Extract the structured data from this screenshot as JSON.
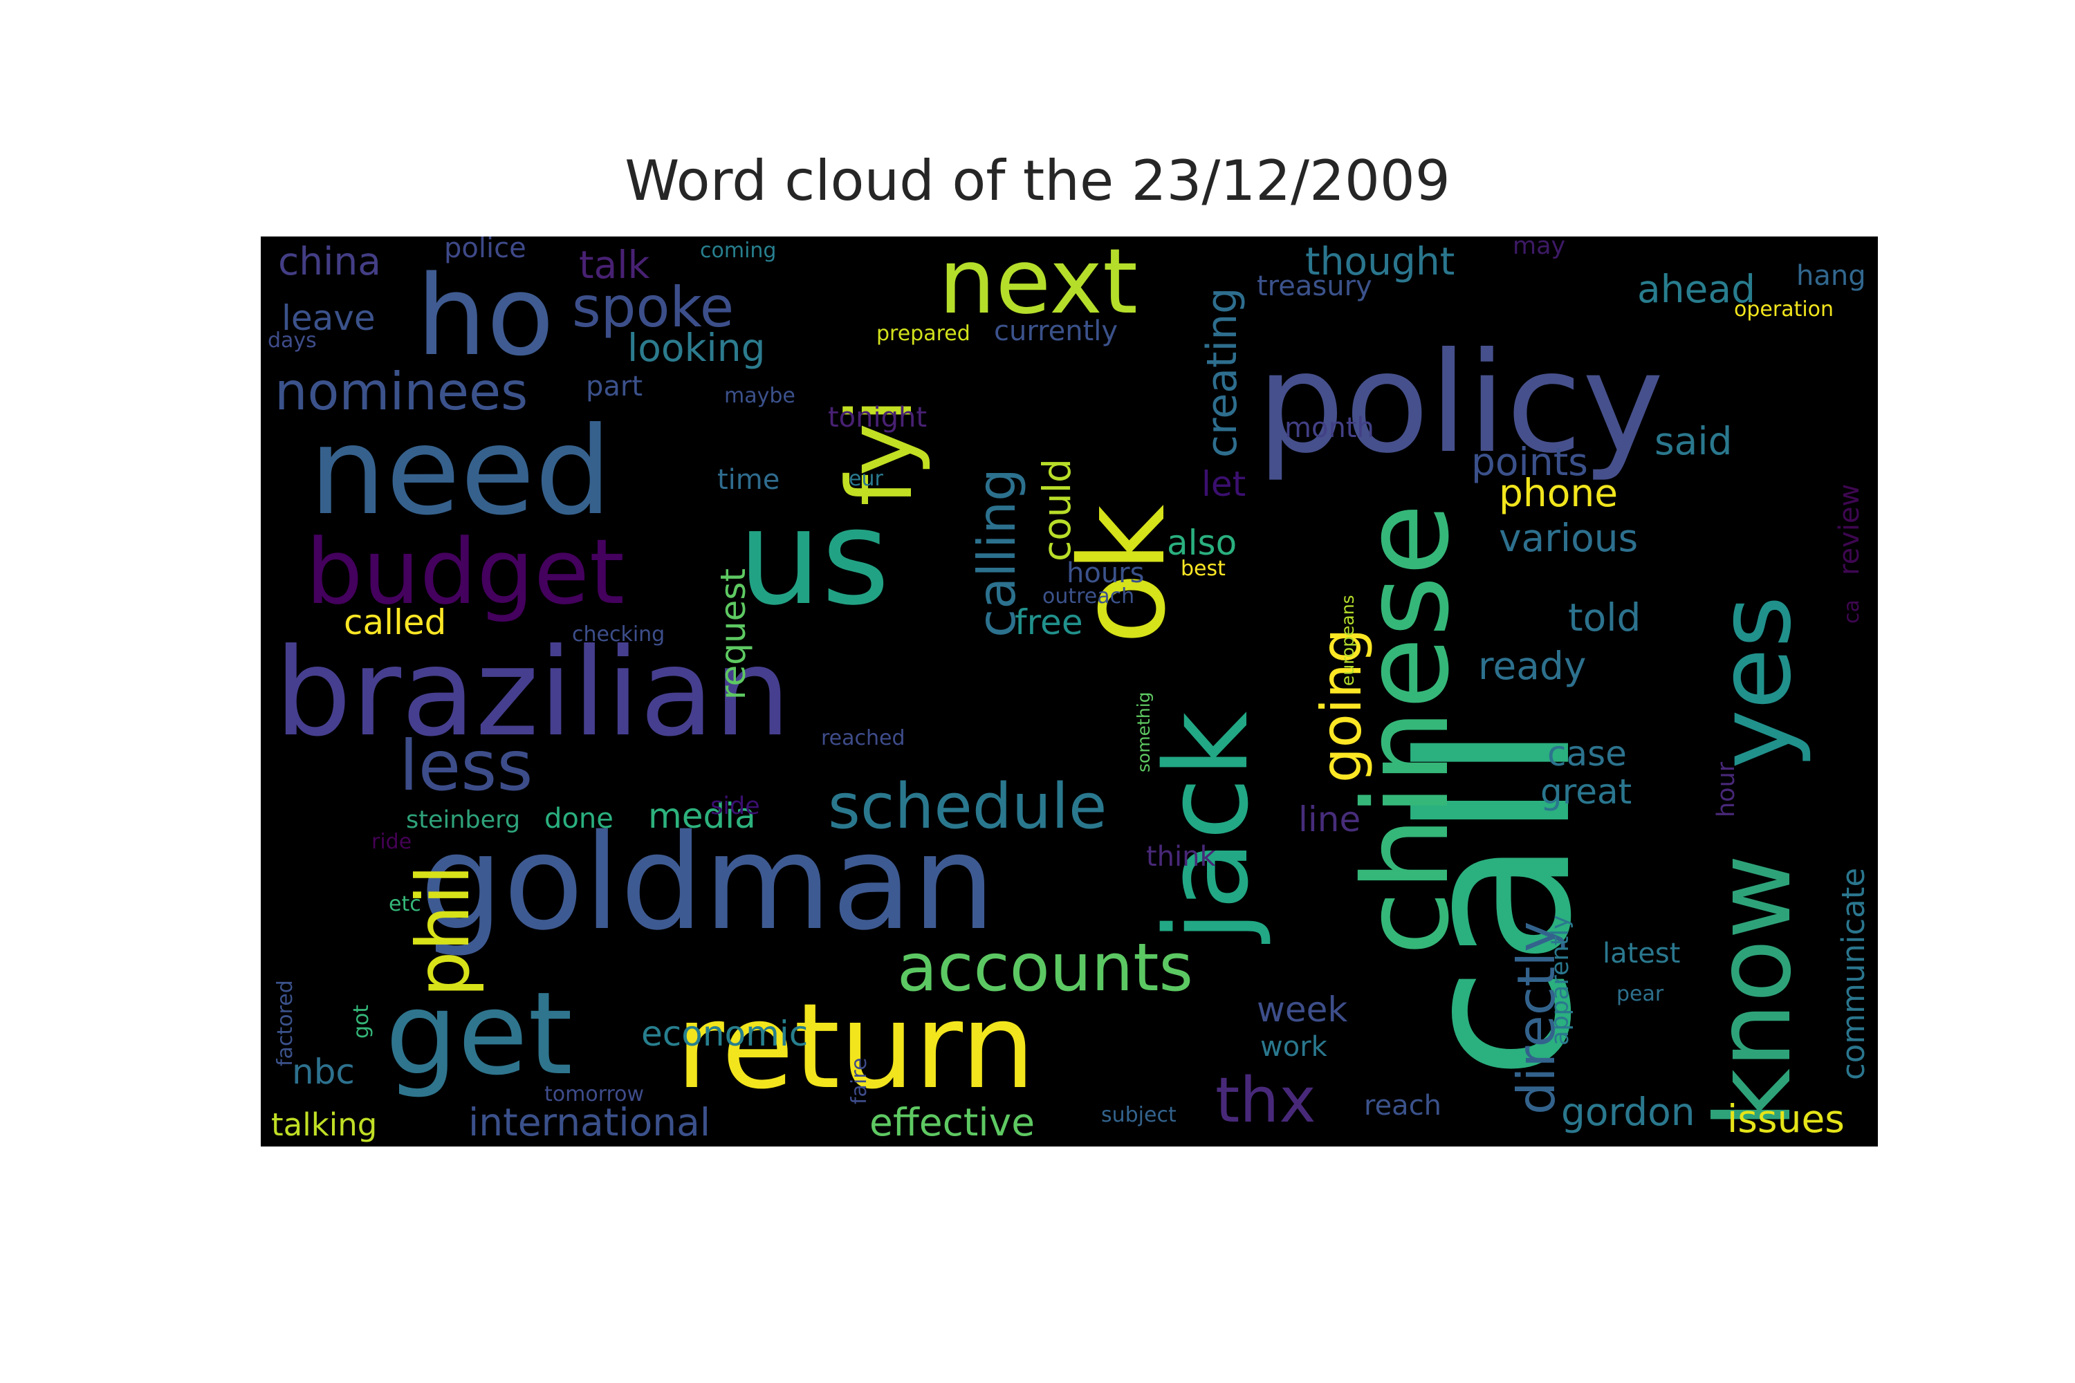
{
  "chart_data": {
    "type": "wordcloud",
    "title": "Word cloud of the 23/12/2009",
    "words": [
      {
        "text": "call",
        "color": "#2bb07f"
      },
      {
        "text": "policy",
        "color": "#46508c"
      },
      {
        "text": "goldman",
        "color": "#3e5a92"
      },
      {
        "text": "brazilian",
        "color": "#463f8f"
      },
      {
        "text": "chinese",
        "color": "#35b779"
      },
      {
        "text": "need",
        "color": "#36618d"
      },
      {
        "text": "return",
        "color": "#f2e51d"
      },
      {
        "text": "jack",
        "color": "#22a885"
      },
      {
        "text": "know",
        "color": "#2ea37a"
      },
      {
        "text": "us",
        "color": "#22a284"
      },
      {
        "text": "ok",
        "color": "#d6e21a"
      },
      {
        "text": "ho",
        "color": "#3f5b91"
      },
      {
        "text": "get",
        "color": "#2f758e"
      },
      {
        "text": "budget",
        "color": "#44015d"
      },
      {
        "text": "yes",
        "color": "#21918c"
      },
      {
        "text": "next",
        "color": "#b5de2b"
      },
      {
        "text": "fyi",
        "color": "#c2df23"
      },
      {
        "text": "phil",
        "color": "#d8e219"
      },
      {
        "text": "schedule",
        "color": "#2a788e"
      },
      {
        "text": "less",
        "color": "#3d4d8a"
      },
      {
        "text": "accounts",
        "color": "#5cc863"
      },
      {
        "text": "nominees",
        "color": "#3b528b"
      },
      {
        "text": "spoke",
        "color": "#3c4f8a"
      },
      {
        "text": "going",
        "color": "#fde725"
      },
      {
        "text": "calling",
        "color": "#2c718e"
      },
      {
        "text": "directly",
        "color": "#33638d"
      },
      {
        "text": "thx",
        "color": "#482979"
      },
      {
        "text": "creating",
        "color": "#2e6e8e"
      },
      {
        "text": "thought",
        "color": "#2a768e"
      },
      {
        "text": "could",
        "color": "#b8de29"
      },
      {
        "text": "looking",
        "color": "#2c7b8e"
      },
      {
        "text": "request",
        "color": "#5ec962"
      },
      {
        "text": "media",
        "color": "#2db27d"
      },
      {
        "text": "economic",
        "color": "#277f8e"
      },
      {
        "text": "international",
        "color": "#3b518b"
      },
      {
        "text": "effective",
        "color": "#5ec962"
      },
      {
        "text": "points",
        "color": "#3b518b"
      },
      {
        "text": "various",
        "color": "#2d708e"
      },
      {
        "text": "told",
        "color": "#2c738e"
      },
      {
        "text": "ready",
        "color": "#2d718e"
      },
      {
        "text": "phone",
        "color": "#f1e51d"
      },
      {
        "text": "said",
        "color": "#2a788e"
      },
      {
        "text": "ahead",
        "color": "#287d8e"
      },
      {
        "text": "china",
        "color": "#433e85"
      },
      {
        "text": "talk",
        "color": "#482173"
      },
      {
        "text": "leave",
        "color": "#3b528b"
      },
      {
        "text": "called",
        "color": "#fde725"
      },
      {
        "text": "also",
        "color": "#2ab07f"
      },
      {
        "text": "let",
        "color": "#3b0f70"
      },
      {
        "text": "free",
        "color": "#21918c"
      },
      {
        "text": "case",
        "color": "#2c738e"
      },
      {
        "text": "great",
        "color": "#2a768e"
      },
      {
        "text": "line",
        "color": "#472d7b"
      },
      {
        "text": "week",
        "color": "#3d4e8a"
      },
      {
        "text": "gordon",
        "color": "#2a788e"
      },
      {
        "text": "issues",
        "color": "#e5e419"
      },
      {
        "text": "communicate",
        "color": "#2a768e"
      },
      {
        "text": "nbc",
        "color": "#2d718e"
      },
      {
        "text": "talking",
        "color": "#c0df25"
      },
      {
        "text": "hours",
        "color": "#3b528b"
      },
      {
        "text": "month",
        "color": "#424086"
      },
      {
        "text": "treasury",
        "color": "#3b528b"
      },
      {
        "text": "police",
        "color": "#3e4989"
      },
      {
        "text": "currently",
        "color": "#3b528b"
      },
      {
        "text": "tonight",
        "color": "#482173"
      },
      {
        "text": "time",
        "color": "#2f6c8e"
      },
      {
        "text": "part",
        "color": "#3b518b"
      },
      {
        "text": "coming",
        "color": "#277f8e"
      },
      {
        "text": "prepared",
        "color": "#d2e21b"
      },
      {
        "text": "maybe",
        "color": "#3b518b"
      },
      {
        "text": "eur",
        "color": "#2a788e"
      },
      {
        "text": "days",
        "color": "#3e4c8a"
      },
      {
        "text": "may",
        "color": "#3d1a66"
      },
      {
        "text": "hang",
        "color": "#31678e"
      },
      {
        "text": "operation",
        "color": "#f2e51d"
      },
      {
        "text": "review",
        "color": "#3e0751"
      },
      {
        "text": "ca",
        "color": "#3e0751"
      },
      {
        "text": "outreach",
        "color": "#3b528b"
      },
      {
        "text": "best",
        "color": "#fde725"
      },
      {
        "text": "checking",
        "color": "#3d4e8a"
      },
      {
        "text": "reached",
        "color": "#3e4c8a"
      },
      {
        "text": "side",
        "color": "#3b0f70"
      },
      {
        "text": "done",
        "color": "#2ab07f"
      },
      {
        "text": "steinberg",
        "color": "#2ea37a"
      },
      {
        "text": "ride",
        "color": "#440154"
      },
      {
        "text": "etc",
        "color": "#35b779"
      },
      {
        "text": "think",
        "color": "#482878"
      },
      {
        "text": "latest",
        "color": "#2a788e"
      },
      {
        "text": "pear",
        "color": "#2d708e"
      },
      {
        "text": "work",
        "color": "#2a788e"
      },
      {
        "text": "reach",
        "color": "#3b528b"
      },
      {
        "text": "subject",
        "color": "#33638d"
      },
      {
        "text": "tomorrow",
        "color": "#3e4c8a"
      },
      {
        "text": "faire",
        "color": "#3e4c8a"
      },
      {
        "text": "factored",
        "color": "#3b528b"
      },
      {
        "text": "got",
        "color": "#35b779"
      },
      {
        "text": "europeans",
        "color": "#b5de2b"
      },
      {
        "text": "somethig",
        "color": "#5ec962"
      },
      {
        "text": "hour",
        "color": "#482878"
      },
      {
        "text": "apparently",
        "color": "#2a788e"
      }
    ]
  }
}
